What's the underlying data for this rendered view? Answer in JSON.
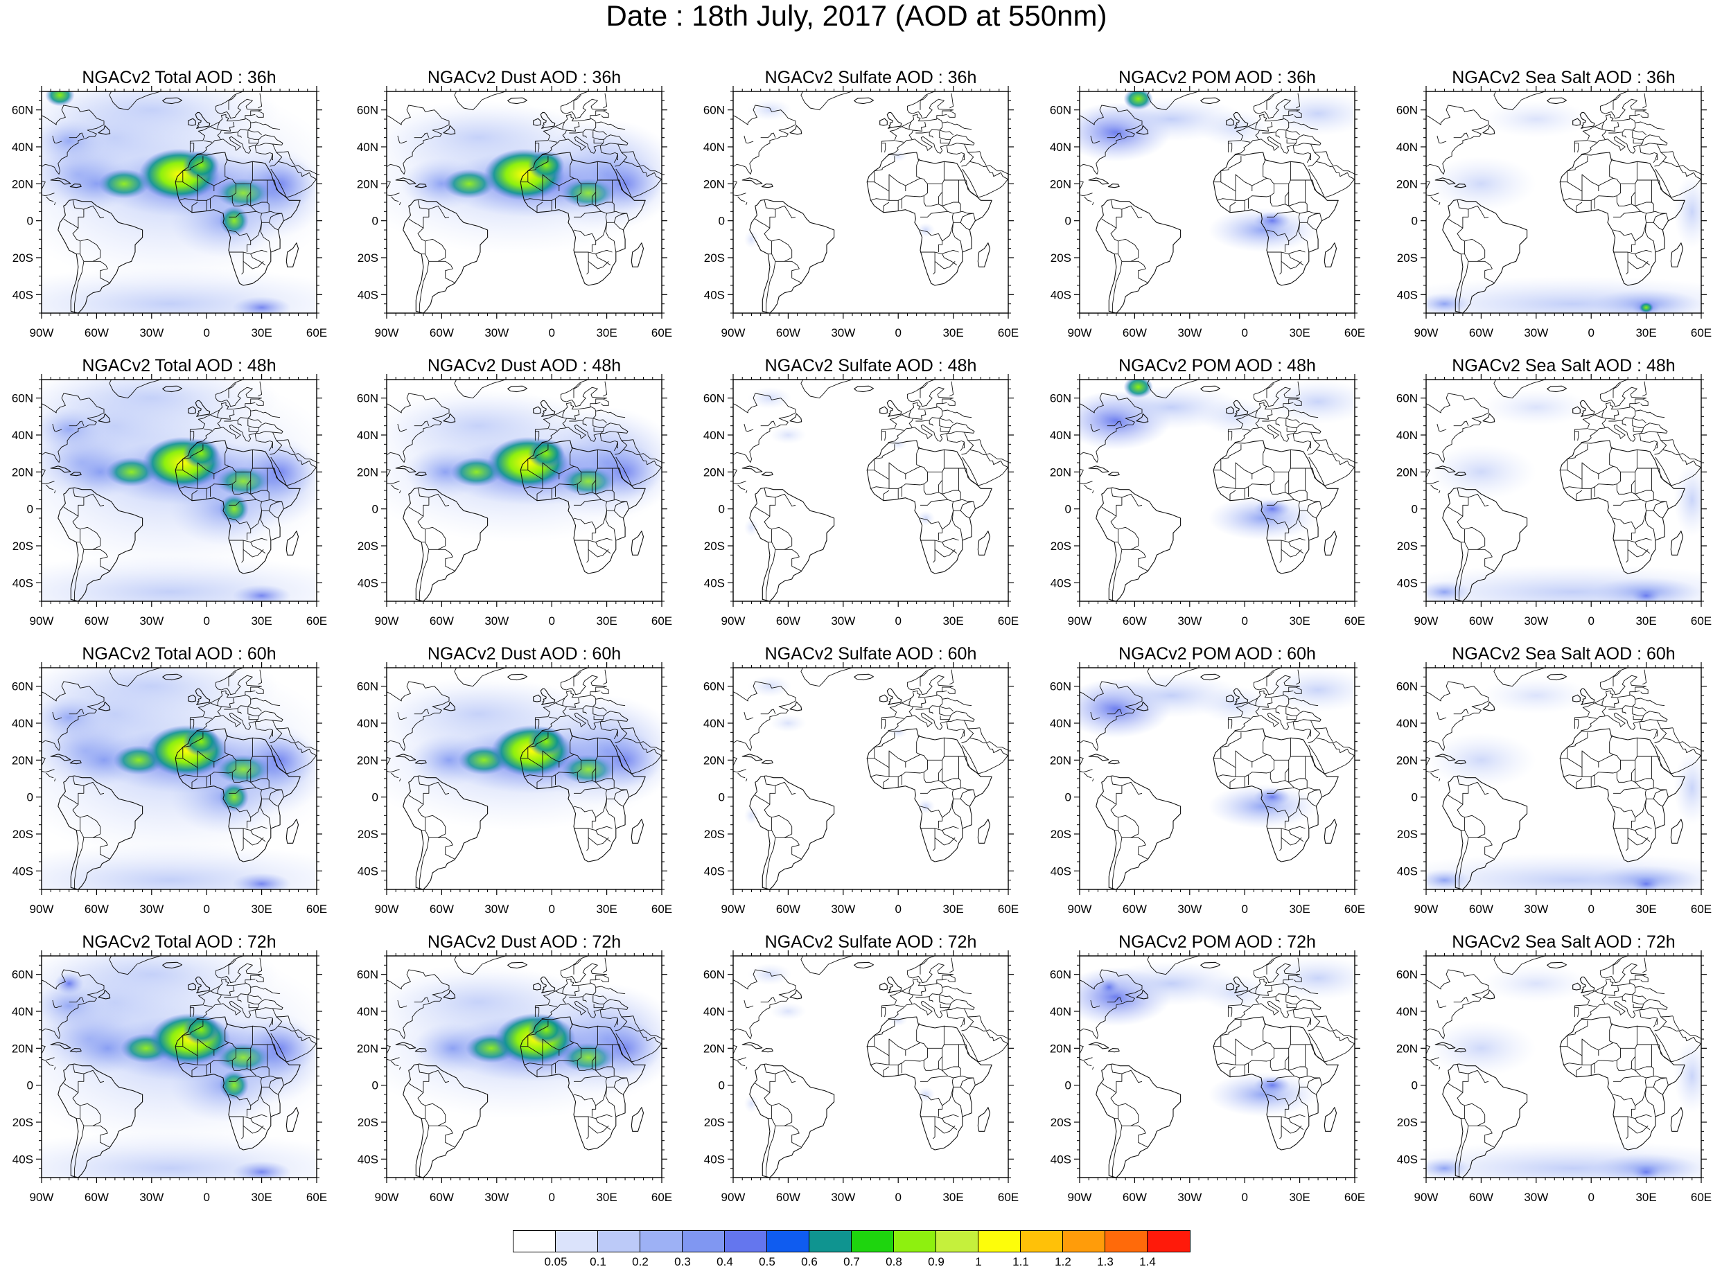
{
  "title": "Date : 18th July, 2017 (AOD at 550nm)",
  "lat_ticks": [
    "60N",
    "40N",
    "20N",
    "0",
    "20S",
    "40S"
  ],
  "lon_ticks": [
    "90W",
    "60W",
    "30W",
    "0",
    "30E",
    "60E"
  ],
  "panels": [
    {
      "title": "NGACv2 Total AOD : 36h",
      "species": "total",
      "hour": "36h"
    },
    {
      "title": "NGACv2 Dust AOD : 36h",
      "species": "dust",
      "hour": "36h"
    },
    {
      "title": "NGACv2 Sulfate AOD : 36h",
      "species": "sulfate",
      "hour": "36h"
    },
    {
      "title": "NGACv2 POM AOD : 36h",
      "species": "pom",
      "hour": "36h"
    },
    {
      "title": "NGACv2 Sea Salt AOD : 36h",
      "species": "seasalt",
      "hour": "36h"
    },
    {
      "title": "NGACv2 Total AOD : 48h",
      "species": "total",
      "hour": "48h"
    },
    {
      "title": "NGACv2 Dust AOD : 48h",
      "species": "dust",
      "hour": "48h"
    },
    {
      "title": "NGACv2 Sulfate AOD : 48h",
      "species": "sulfate",
      "hour": "48h"
    },
    {
      "title": "NGACv2 POM AOD : 48h",
      "species": "pom",
      "hour": "48h"
    },
    {
      "title": "NGACv2 Sea Salt AOD : 48h",
      "species": "seasalt",
      "hour": "48h"
    },
    {
      "title": "NGACv2 Total AOD : 60h",
      "species": "total",
      "hour": "60h"
    },
    {
      "title": "NGACv2 Dust AOD : 60h",
      "species": "dust",
      "hour": "60h"
    },
    {
      "title": "NGACv2 Sulfate AOD : 60h",
      "species": "sulfate",
      "hour": "60h"
    },
    {
      "title": "NGACv2 POM AOD : 60h",
      "species": "pom",
      "hour": "60h"
    },
    {
      "title": "NGACv2 Sea Salt AOD : 60h",
      "species": "seasalt",
      "hour": "60h"
    },
    {
      "title": "NGACv2 Total AOD : 72h",
      "species": "total",
      "hour": "72h"
    },
    {
      "title": "NGACv2 Dust AOD : 72h",
      "species": "dust",
      "hour": "72h"
    },
    {
      "title": "NGACv2 Sulfate AOD : 72h",
      "species": "sulfate",
      "hour": "72h"
    },
    {
      "title": "NGACv2 POM AOD : 72h",
      "species": "pom",
      "hour": "72h"
    },
    {
      "title": "NGACv2 Sea Salt  AOD : 72h",
      "species": "seasalt",
      "hour": "72h"
    }
  ],
  "colorbar": {
    "labels": [
      "0.05",
      "0.1",
      "0.2",
      "0.3",
      "0.4",
      "0.5",
      "0.6",
      "0.7",
      "0.8",
      "0.9",
      "1",
      "1.1",
      "1.2",
      "1.3",
      "1.4"
    ],
    "colors": [
      "#ffffff",
      "#dbe3fb",
      "#bccaf8",
      "#9db1f5",
      "#8097f2",
      "#6476ee",
      "#0f5cf0",
      "#0f9490",
      "#1ed50e",
      "#8ef00f",
      "#c5f03c",
      "#fdfd0a",
      "#ffc108",
      "#ff9c0a",
      "#ff6a0a",
      "#ff1a0a"
    ]
  },
  "extent": {
    "lon": [
      -90,
      60
    ],
    "lat": [
      -50,
      70
    ]
  }
}
